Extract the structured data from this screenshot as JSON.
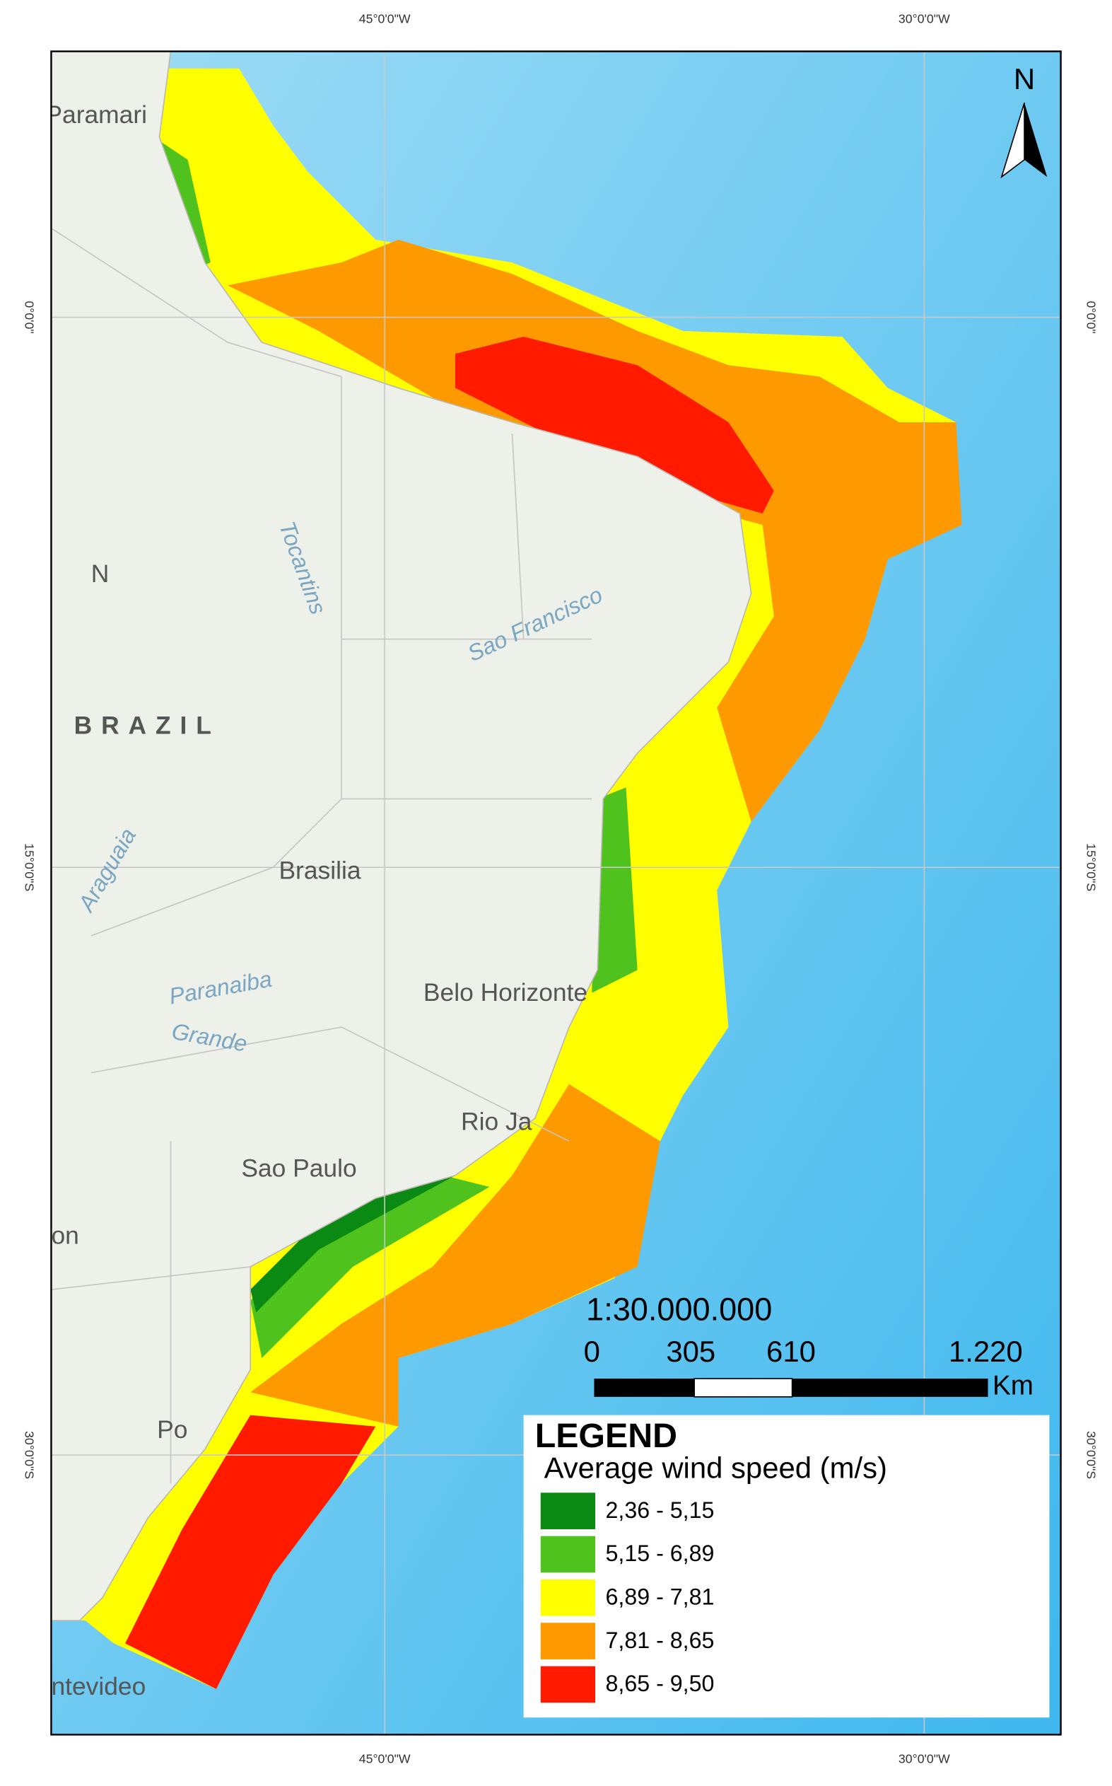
{
  "graticule": {
    "top": [
      "45°0'0\"W",
      "30°0'0\"W"
    ],
    "bottom": [
      "45°0'0\"W",
      "30°0'0\"W"
    ],
    "left": [
      "0°0'0\"",
      "15°0'0\"S",
      "30°0'0\"S"
    ],
    "right": [
      "0°0'0\"",
      "15°0'0\"S",
      "30°0'0\"S"
    ]
  },
  "places": [
    "Paramari",
    "N",
    "BRAZIL",
    "Tocantins",
    "Sao Francisco",
    "Araguaia",
    "Brasilia",
    "Belo Horizonte",
    "Paranaiba",
    "Grande",
    "Rio Ja",
    "Sao Paulo",
    "on",
    "Po",
    "ntevideo"
  ],
  "north": "N",
  "scale": {
    "ratio": "1:30.000.000",
    "labels": [
      "0",
      "305",
      "610",
      "1.220"
    ],
    "unit": "Km"
  },
  "legend": {
    "title": "LEGEND",
    "subtitle": "Average wind speed (m/s)",
    "items": [
      {
        "label": "2,36 - 5,15",
        "color": "#0a8a12"
      },
      {
        "label": "5,15 - 6,89",
        "color": "#4fc21e"
      },
      {
        "label": "6,89 - 7,81",
        "color": "#ffff00"
      },
      {
        "label": "7,81 - 8,65",
        "color": "#ff9900"
      },
      {
        "label": "8,65 - 9,50",
        "color": "#ff1a00"
      }
    ]
  }
}
